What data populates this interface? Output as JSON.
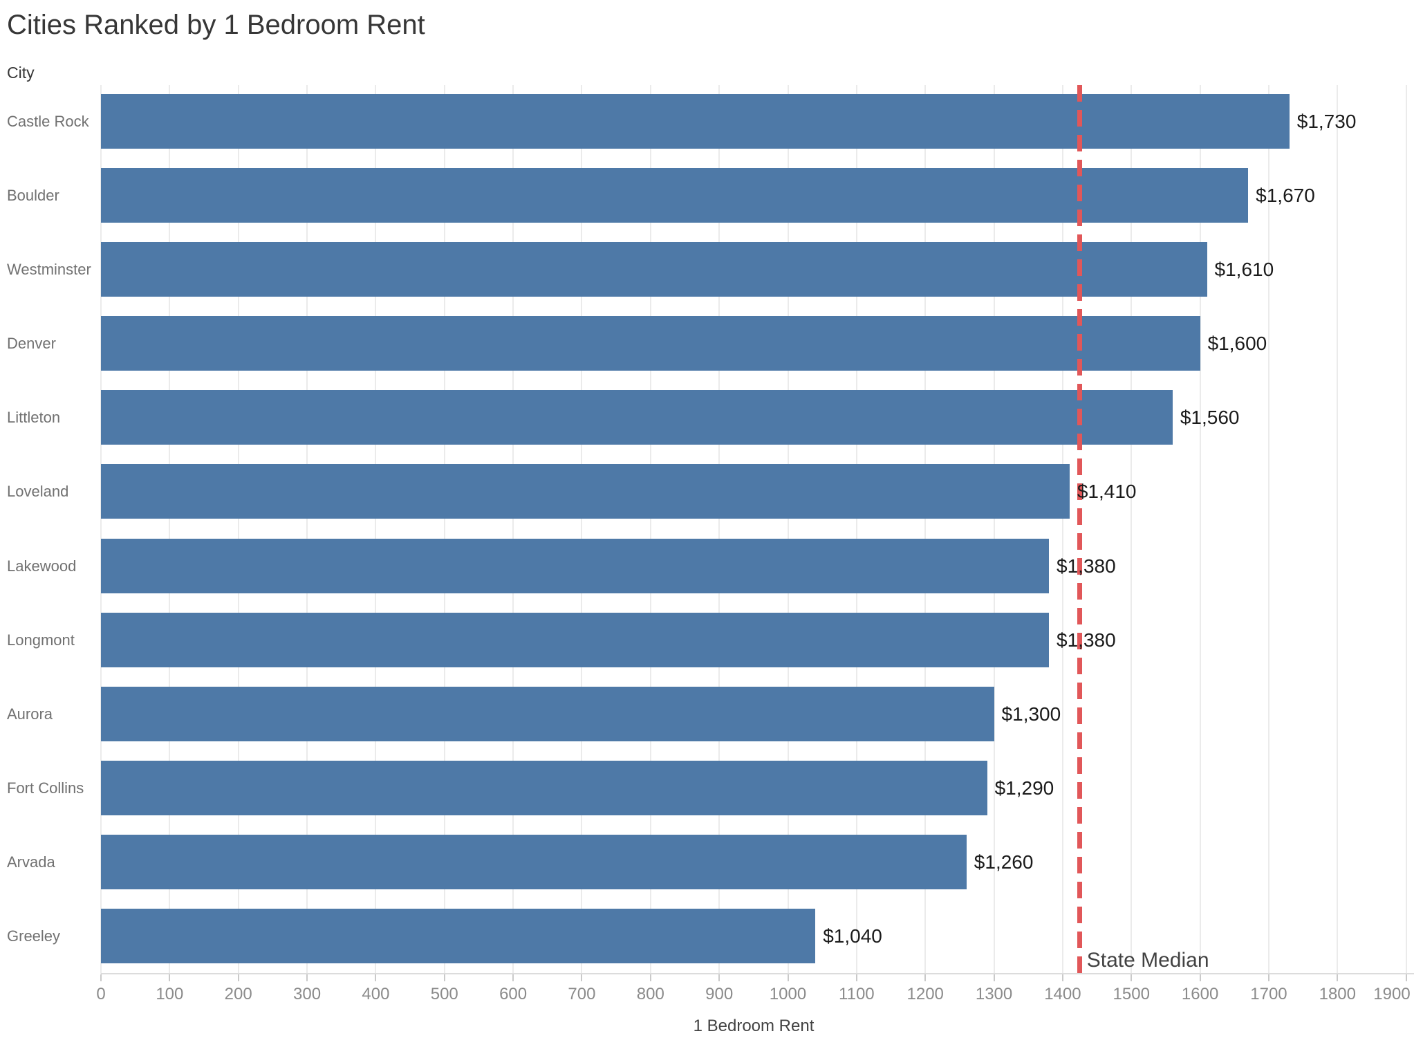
{
  "colors": {
    "bar": "#4e79a7",
    "median_line": "#e15759",
    "grid_line": "#ebebeb",
    "axis_line": "#dcdcdc",
    "tick_mark": "#cacaca",
    "title_text": "#373737",
    "category_text": "#717171",
    "value_text": "#1b1b1b",
    "tick_text": "#8b8b8b",
    "axis_title_text": "#424242",
    "median_text": "#424242"
  },
  "chart_data": {
    "type": "bar",
    "orientation": "horizontal",
    "title": "Cities Ranked by 1 Bedroom Rent",
    "categories_label": "City",
    "categories": [
      "Castle Rock",
      "Boulder",
      "Westminster",
      "Denver",
      "Littleton",
      "Loveland",
      "Lakewood",
      "Longmont",
      "Aurora",
      "Fort Collins",
      "Arvada",
      "Greeley"
    ],
    "values": [
      1730,
      1670,
      1610,
      1600,
      1560,
      1410,
      1380,
      1380,
      1300,
      1290,
      1260,
      1040
    ],
    "value_labels": [
      "$1,730",
      "$1,670",
      "$1,610",
      "$1,600",
      "$1,560",
      "$1,410",
      "$1,380",
      "$1,380",
      "$1,300",
      "$1,290",
      "$1,260",
      "$1,040"
    ],
    "xlabel": "1 Bedroom Rent",
    "xlim": [
      0,
      1900
    ],
    "xticks": [
      0,
      100,
      200,
      300,
      400,
      500,
      600,
      700,
      800,
      900,
      1000,
      1100,
      1200,
      1300,
      1400,
      1500,
      1600,
      1700,
      1800,
      1900
    ],
    "grid": true,
    "legend": null,
    "reference_line": {
      "label": "State Median",
      "value": 1425,
      "style": "dashed"
    }
  }
}
